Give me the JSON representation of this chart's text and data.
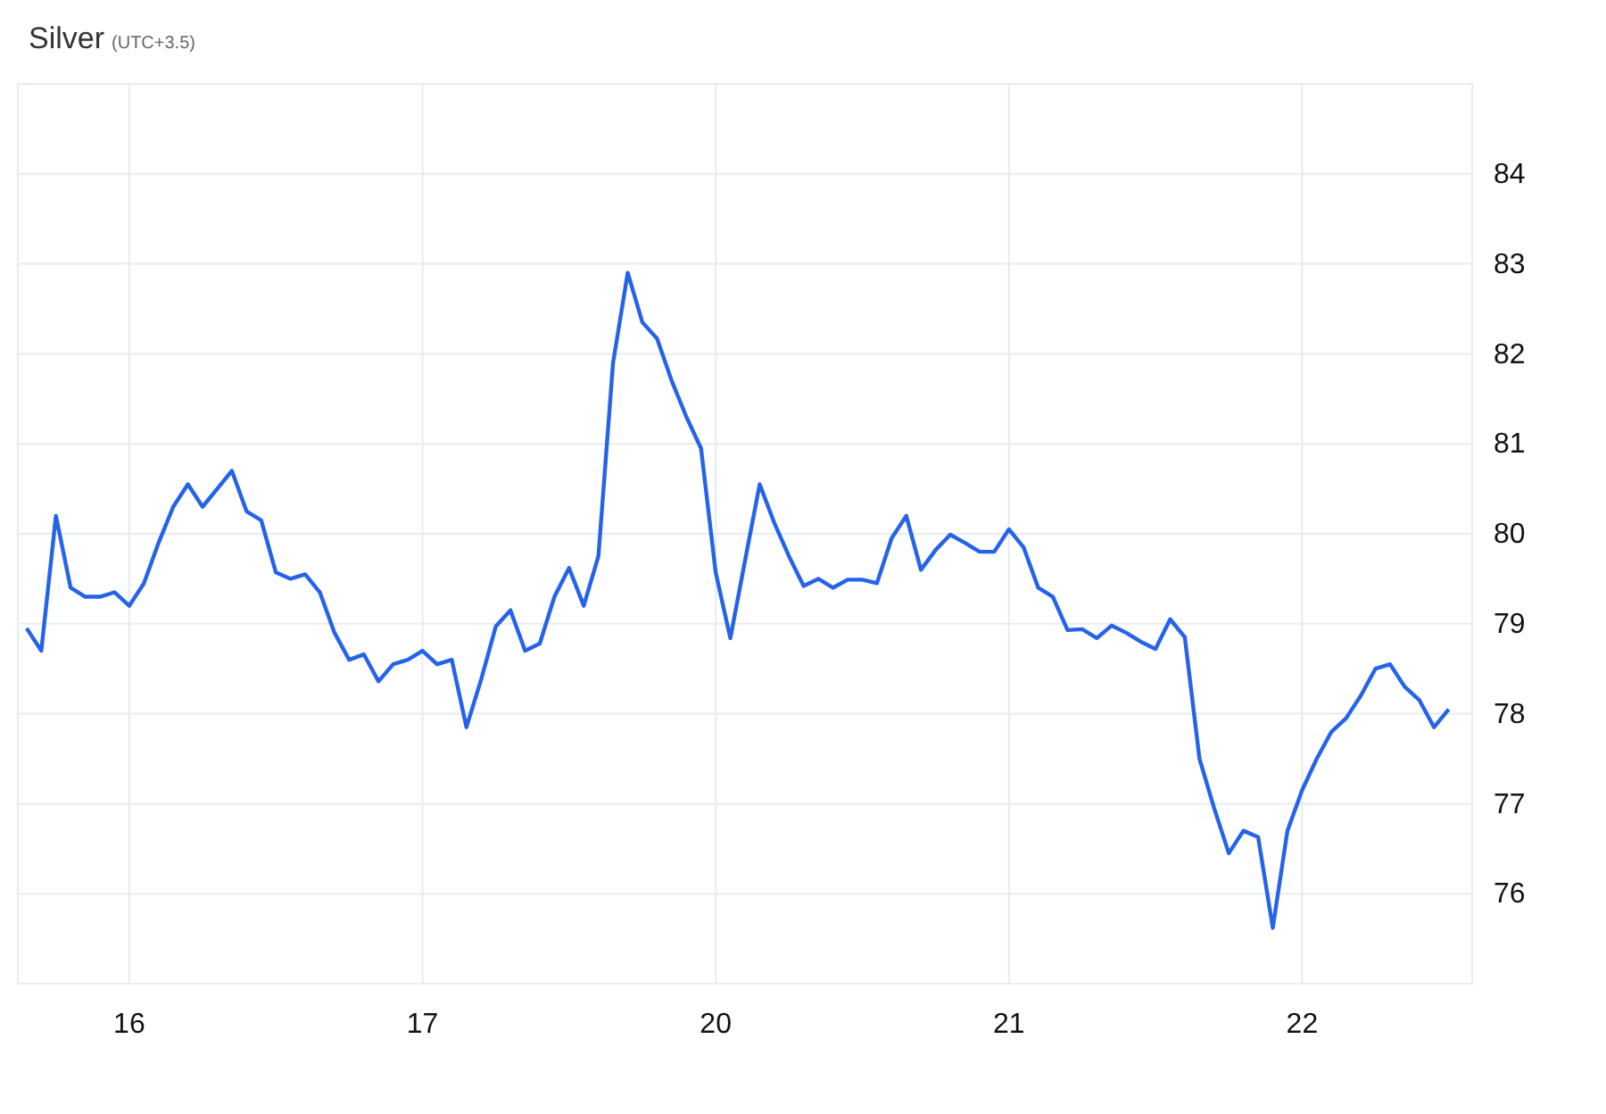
{
  "chart_data": {
    "type": "line",
    "title": "Silver",
    "subtitle": "(UTC+3.5)",
    "categories": [
      null,
      null,
      null,
      null,
      null,
      null,
      null,
      "16",
      null,
      null,
      null,
      null,
      null,
      null,
      null,
      null,
      null,
      null,
      null,
      null,
      null,
      null,
      null,
      null,
      null,
      null,
      null,
      "17",
      null,
      null,
      null,
      null,
      null,
      null,
      null,
      null,
      null,
      null,
      null,
      null,
      null,
      null,
      null,
      null,
      null,
      null,
      null,
      "20",
      null,
      null,
      null,
      null,
      null,
      null,
      null,
      null,
      null,
      null,
      null,
      null,
      null,
      null,
      null,
      null,
      null,
      null,
      null,
      "21",
      null,
      null,
      null,
      null,
      null,
      null,
      null,
      null,
      null,
      null,
      null,
      null,
      null,
      null,
      null,
      null,
      null,
      null,
      null,
      "22",
      null,
      null,
      null,
      null,
      null,
      null,
      null,
      null,
      null,
      null
    ],
    "ylim": [
      75,
      85
    ],
    "yticks": [
      76,
      77,
      78,
      79,
      80,
      81,
      82,
      83,
      84
    ],
    "grid": true,
    "marker": "none",
    "line_style": "solid",
    "series": [
      {
        "color": "#2563eb",
        "values": [
          78.95,
          78.7,
          80.2,
          79.4,
          79.3,
          79.3,
          79.35,
          79.2,
          79.45,
          79.9,
          80.3,
          80.55,
          80.3,
          80.5,
          80.7,
          80.25,
          80.15,
          79.57,
          79.5,
          79.55,
          79.35,
          78.9,
          78.6,
          78.66,
          78.36,
          78.55,
          78.6,
          78.7,
          78.55,
          78.6,
          77.85,
          78.38,
          78.97,
          79.15,
          78.7,
          78.78,
          79.3,
          79.62,
          79.2,
          79.75,
          81.9,
          82.9,
          82.35,
          82.17,
          81.7,
          81.3,
          80.95,
          79.57,
          78.84,
          79.7,
          80.55,
          80.12,
          79.75,
          79.42,
          79.5,
          79.4,
          79.49,
          79.49,
          79.45,
          79.95,
          80.2,
          79.6,
          79.82,
          79.99,
          79.9,
          79.8,
          79.8,
          80.05,
          79.85,
          79.4,
          79.3,
          78.93,
          78.94,
          78.84,
          78.98,
          78.9,
          78.8,
          78.72,
          79.05,
          78.85,
          77.5,
          76.95,
          76.45,
          76.7,
          76.63,
          75.62,
          76.7,
          77.15,
          77.5,
          77.8,
          77.95,
          78.2,
          78.5,
          78.55,
          78.3,
          78.15,
          77.85,
          78.05
        ]
      }
    ]
  }
}
